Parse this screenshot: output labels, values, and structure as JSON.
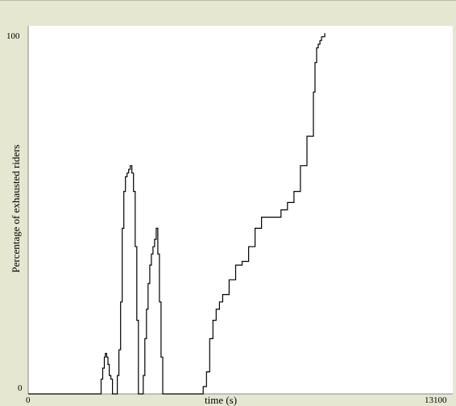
{
  "chart_data": {
    "type": "line",
    "title": "",
    "xlabel": "time (s)",
    "ylabel": "Percentage of exhausted riders",
    "xlim": [
      0,
      13100
    ],
    "ylim": [
      0,
      100
    ],
    "x_tick_labels": [
      "0",
      "13100"
    ],
    "y_tick_labels": [
      "0",
      "100"
    ],
    "grid": false,
    "legend": "none",
    "colors": {
      "line": "#000000",
      "plot_background": "#ffffff",
      "frame_background": "#e5e7d1"
    },
    "series": [
      {
        "x": [
          0,
          2000,
          2150,
          2250,
          2300,
          2350,
          2380,
          2420,
          2460,
          2500,
          2550,
          2600,
          2620,
          2650,
          2700,
          2750,
          2800,
          2850,
          2900,
          2950,
          3000,
          3050,
          3100,
          3150,
          3200,
          3250,
          3300,
          3350,
          3400,
          3450,
          3480,
          3500,
          3550,
          3600,
          3650,
          3700,
          3750,
          3800,
          3850,
          3900,
          3950,
          4000,
          4050,
          4100,
          4150,
          4200,
          4250,
          4300,
          4350,
          4400,
          4450,
          4500,
          4800,
          5000,
          5150,
          5300,
          5400,
          5500,
          5600,
          5700,
          5800,
          5900,
          6000,
          6200,
          6400,
          6600,
          6800,
          7000,
          7200,
          7400,
          7600,
          7800,
          8000,
          8200,
          8400,
          8600,
          8800,
          8850,
          8900,
          8950,
          9000,
          9050,
          9100,
          9150
        ],
        "y": [
          0,
          0,
          0,
          4,
          7,
          10,
          11,
          10,
          8,
          5,
          4,
          0,
          0,
          0,
          0,
          5,
          12,
          25,
          45,
          55,
          59,
          60,
          61,
          62,
          60,
          55,
          40,
          20,
          0,
          0,
          0,
          0,
          5,
          15,
          23,
          30,
          35,
          38,
          40,
          42,
          45,
          38,
          25,
          10,
          0,
          0,
          0,
          0,
          0,
          0,
          0,
          0,
          0,
          0,
          0,
          0,
          2,
          6,
          15,
          20,
          23,
          25,
          27,
          31,
          35,
          36,
          40,
          45,
          48,
          48,
          48,
          50,
          52,
          55,
          62,
          70,
          82,
          90,
          94,
          95,
          96,
          97,
          97,
          98
        ]
      }
    ]
  }
}
